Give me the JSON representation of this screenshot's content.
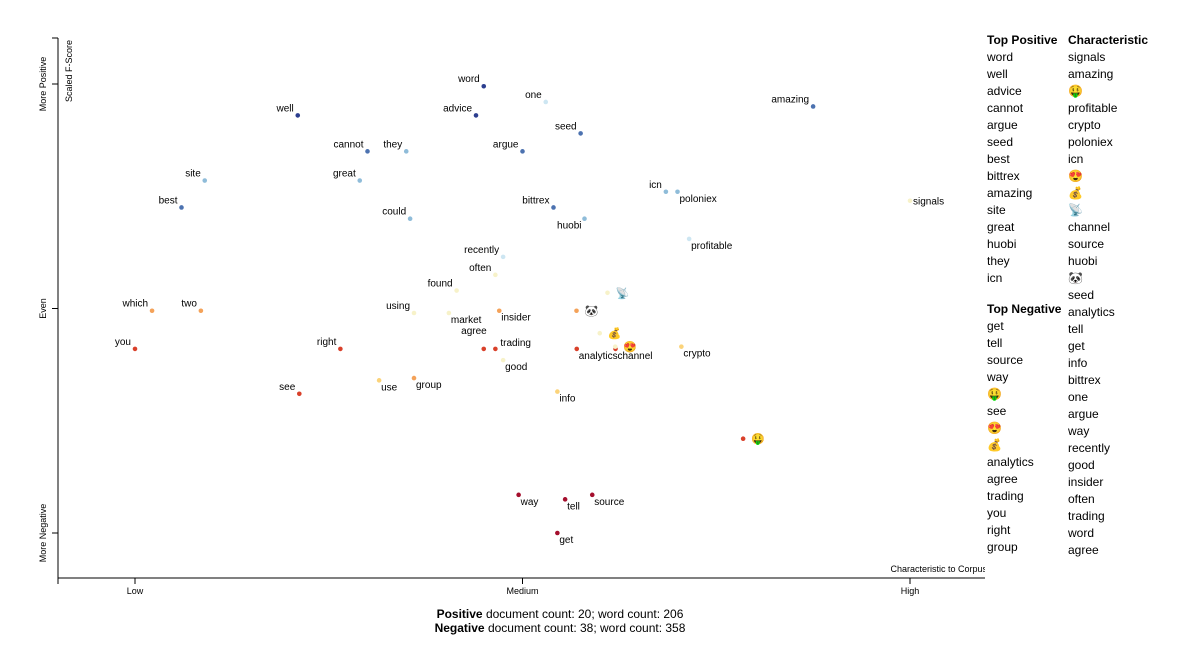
{
  "chart_data": {
    "type": "scatter",
    "x_axis": {
      "label": "Characteristic to Corpus",
      "ticks": [
        "Low",
        "Medium",
        "High"
      ],
      "range": [
        -0.1,
        1.1
      ]
    },
    "y_axis": {
      "label": "Scaled F-Score",
      "ticks": [
        "More Positive",
        "Even",
        "More Negative"
      ],
      "range": [
        -0.1,
        1.1
      ]
    },
    "colors": {
      "strong_positive": "#2c3e8f",
      "positive": "#4c72b0",
      "light_positive": "#8fbcd9",
      "pale_positive": "#cde6f2",
      "neutral": "#f7f2c9",
      "light_negative": "#fbd37a",
      "negative": "#f4a259",
      "strong_negative": "#d9402a",
      "darkest_negative": "#a50f2d"
    },
    "points": [
      {
        "term": "word",
        "x": 0.45,
        "y": 0.995,
        "color": "#2c3e8f",
        "label_side": "left"
      },
      {
        "term": "one",
        "x": 0.53,
        "y": 0.96,
        "color": "#cde6f2",
        "label_side": "left"
      },
      {
        "term": "amazing",
        "x": 0.875,
        "y": 0.95,
        "color": "#4c72b0",
        "label_side": "left"
      },
      {
        "term": "well",
        "x": 0.21,
        "y": 0.93,
        "color": "#2c3e8f",
        "label_side": "left"
      },
      {
        "term": "advice",
        "x": 0.44,
        "y": 0.93,
        "color": "#2c3e8f",
        "label_side": "left"
      },
      {
        "term": "seed",
        "x": 0.575,
        "y": 0.89,
        "color": "#4c72b0",
        "label_side": "left"
      },
      {
        "term": "cannot",
        "x": 0.3,
        "y": 0.85,
        "color": "#4c72b0",
        "label_side": "left"
      },
      {
        "term": "they",
        "x": 0.35,
        "y": 0.85,
        "color": "#8fbcd9",
        "label_side": "left"
      },
      {
        "term": "argue",
        "x": 0.5,
        "y": 0.85,
        "color": "#4c72b0",
        "label_side": "left"
      },
      {
        "term": "site",
        "x": 0.09,
        "y": 0.785,
        "color": "#8fbcd9",
        "label_side": "left"
      },
      {
        "term": "great",
        "x": 0.29,
        "y": 0.785,
        "color": "#8fbcd9",
        "label_side": "left"
      },
      {
        "term": "icn",
        "x": 0.685,
        "y": 0.76,
        "color": "#8fbcd9",
        "label_side": "left"
      },
      {
        "term": "poloniex",
        "x": 0.7,
        "y": 0.76,
        "color": "#8fbcd9",
        "label_side": "below"
      },
      {
        "term": "best",
        "x": 0.06,
        "y": 0.725,
        "color": "#4c72b0",
        "label_side": "left"
      },
      {
        "term": "bittrex",
        "x": 0.54,
        "y": 0.725,
        "color": "#4c72b0",
        "label_side": "left"
      },
      {
        "term": "signals",
        "x": 1.0,
        "y": 0.74,
        "color": "#f7f2c9",
        "label_side": "right"
      },
      {
        "term": "could",
        "x": 0.355,
        "y": 0.7,
        "color": "#8fbcd9",
        "label_side": "left"
      },
      {
        "term": "huobi",
        "x": 0.58,
        "y": 0.7,
        "color": "#8fbcd9",
        "label_side": "left-below"
      },
      {
        "term": "profitable",
        "x": 0.715,
        "y": 0.655,
        "color": "#cde6f2",
        "label_side": "below"
      },
      {
        "term": "recently",
        "x": 0.475,
        "y": 0.615,
        "color": "#cde6f2",
        "label_side": "left"
      },
      {
        "term": "often",
        "x": 0.465,
        "y": 0.575,
        "color": "#f7f2c9",
        "label_side": "left"
      },
      {
        "term": "found",
        "x": 0.415,
        "y": 0.54,
        "color": "#f7f2c9",
        "label_side": "left"
      },
      {
        "term": "which",
        "x": 0.022,
        "y": 0.495,
        "color": "#f4a259",
        "label_side": "left"
      },
      {
        "term": "two",
        "x": 0.085,
        "y": 0.495,
        "color": "#f4a259",
        "label_side": "left"
      },
      {
        "term": "using",
        "x": 0.36,
        "y": 0.49,
        "color": "#f7f2c9",
        "label_side": "left"
      },
      {
        "term": "market",
        "x": 0.405,
        "y": 0.49,
        "color": "#f7f2c9",
        "label_side": "below"
      },
      {
        "term": "insider",
        "x": 0.47,
        "y": 0.495,
        "color": "#f4a259",
        "label_side": "below"
      },
      {
        "term": "agree",
        "x": 0.45,
        "y": 0.41,
        "color": "#d9402a",
        "label_side": "above"
      },
      {
        "term": "trading",
        "x": 0.465,
        "y": 0.41,
        "color": "#d9402a",
        "label_side": "above-right"
      },
      {
        "term": "good",
        "x": 0.475,
        "y": 0.385,
        "color": "#f7f2c9",
        "label_side": "below"
      },
      {
        "term": "you",
        "x": 0.0,
        "y": 0.41,
        "color": "#d9402a",
        "label_side": "left"
      },
      {
        "term": "right",
        "x": 0.265,
        "y": 0.41,
        "color": "#d9402a",
        "label_side": "left"
      },
      {
        "term": "analytics",
        "x": 0.57,
        "y": 0.41,
        "color": "#d9402a",
        "label_side": "below"
      },
      {
        "term": "channel",
        "x": 0.62,
        "y": 0.41,
        "color": "#d9402a",
        "label_side": "below"
      },
      {
        "term": "crypto",
        "x": 0.705,
        "y": 0.415,
        "color": "#fbd37a",
        "label_side": "below"
      },
      {
        "term": "use",
        "x": 0.315,
        "y": 0.34,
        "color": "#fbd37a",
        "label_side": "below"
      },
      {
        "term": "group",
        "x": 0.36,
        "y": 0.345,
        "color": "#f4a259",
        "label_side": "below"
      },
      {
        "term": "see",
        "x": 0.212,
        "y": 0.31,
        "color": "#d9402a",
        "label_side": "left"
      },
      {
        "term": "info",
        "x": 0.545,
        "y": 0.315,
        "color": "#fbd37a",
        "label_side": "below"
      },
      {
        "term": "way",
        "x": 0.495,
        "y": 0.085,
        "color": "#a50f2d",
        "label_side": "below"
      },
      {
        "term": "tell",
        "x": 0.555,
        "y": 0.075,
        "color": "#a50f2d",
        "label_side": "below"
      },
      {
        "term": "source",
        "x": 0.59,
        "y": 0.085,
        "color": "#a50f2d",
        "label_side": "below"
      },
      {
        "term": "get",
        "x": 0.545,
        "y": 0.0,
        "color": "#a50f2d",
        "label_side": "below"
      }
    ],
    "emoji_points": [
      {
        "emoji": "📡",
        "x": 0.62,
        "y": 0.535,
        "dot_color": "#f7f2c9"
      },
      {
        "emoji": "🐼",
        "x": 0.58,
        "y": 0.495,
        "dot_color": "#f4a259"
      },
      {
        "emoji": "💰",
        "x": 0.61,
        "y": 0.445,
        "dot_color": "#f7f2c9"
      },
      {
        "emoji": "😍",
        "x": 0.63,
        "y": 0.415,
        "dot_color": "#f7f2c9"
      },
      {
        "emoji": "🤑",
        "x": 0.795,
        "y": 0.21,
        "dot_color": "#d9402a"
      }
    ]
  },
  "sidebar": {
    "top_positive": {
      "title": "Top Positive",
      "items": [
        "word",
        "well",
        "advice",
        "cannot",
        "argue",
        "seed",
        "best",
        "bittrex",
        "amazing",
        "site",
        "great",
        "huobi",
        "they",
        "icn"
      ]
    },
    "top_negative": {
      "title": "Top Negative",
      "items": [
        "get",
        "tell",
        "source",
        "way",
        "🤑",
        "see",
        "😍",
        "💰",
        "analytics",
        "agree",
        "trading",
        "you",
        "right",
        "group"
      ]
    },
    "characteristic": {
      "title": "Characteristic",
      "items": [
        "signals",
        "amazing",
        "🤑",
        "profitable",
        "crypto",
        "poloniex",
        "icn",
        "😍",
        "💰",
        "📡",
        "channel",
        "source",
        "huobi",
        "🐼",
        "seed",
        "analytics",
        "tell",
        "get",
        "info",
        "bittrex",
        "one",
        "argue",
        "way",
        "recently",
        "good",
        "insider",
        "often",
        "trading",
        "word",
        "agree"
      ]
    }
  },
  "footer": {
    "positive": {
      "label": "Positive",
      "text": " document count: 20; word count: 206"
    },
    "negative": {
      "label": "Negative",
      "text": " document count: 38; word count: 358"
    }
  }
}
